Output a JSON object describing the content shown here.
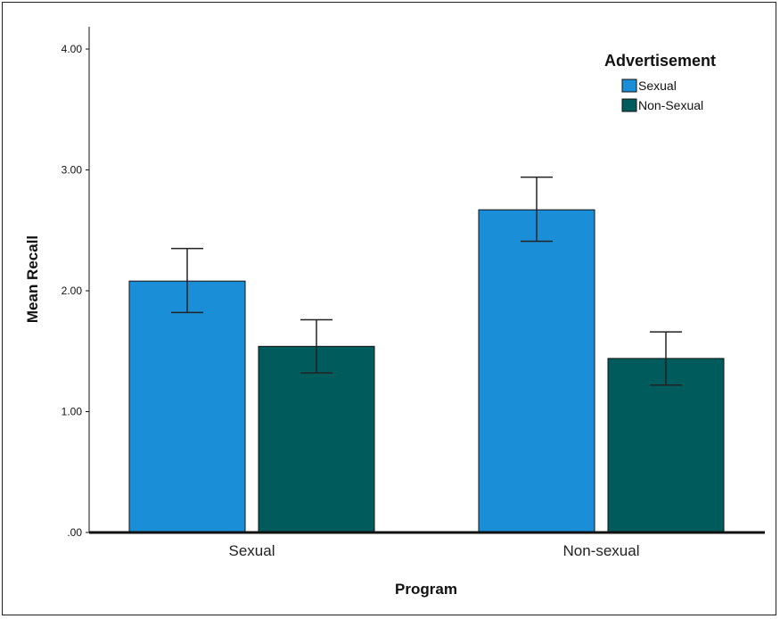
{
  "chart_data": {
    "type": "bar",
    "xlabel": "Program",
    "ylabel": "Mean Recall",
    "categories": [
      "Sexual",
      "Non-sexual"
    ],
    "ylim": [
      0,
      4
    ],
    "yticks": [
      {
        "value": 0,
        "label": ".00"
      },
      {
        "value": 1,
        "label": "1.00"
      },
      {
        "value": 2,
        "label": "2.00"
      },
      {
        "value": 3,
        "label": "3.00"
      },
      {
        "value": 4,
        "label": "4.00"
      }
    ],
    "grid": false,
    "legend": {
      "title": "Advertisement",
      "placement": "top-right"
    },
    "series": [
      {
        "name": "Sexual",
        "color": "#1a8fd8",
        "values": [
          2.08,
          2.67
        ],
        "error_low": [
          1.82,
          2.41
        ],
        "error_high": [
          2.35,
          2.94
        ]
      },
      {
        "name": "Non-Sexual",
        "color": "#005c5c",
        "values": [
          1.54,
          1.44
        ],
        "error_low": [
          1.32,
          1.22
        ],
        "error_high": [
          1.76,
          1.66
        ]
      }
    ]
  }
}
